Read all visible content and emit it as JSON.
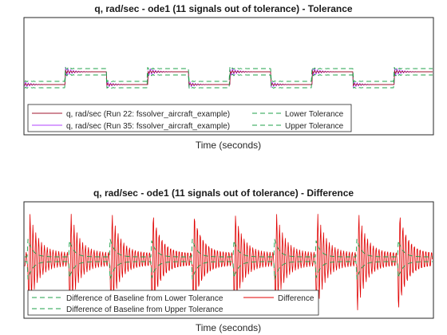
{
  "chart_data": [
    {
      "type": "line",
      "title": "q, rad/sec - ode1 (11 signals out of tolerance) - Tolerance",
      "xlabel": "Time (seconds)",
      "ylabel": "",
      "grid": false,
      "legend_location": "bottom-left",
      "series": [
        {
          "name": "q, rad/sec (Run 22: fssolver_aircraft_example)",
          "color": "#a2142f"
        },
        {
          "name": "q, rad/sec (Run 35: fssolver_aircraft_example)",
          "color": "#b040ff"
        },
        {
          "name": "Lower Tolerance",
          "color": "#1fa04a",
          "dash": "dashed"
        },
        {
          "name": "Upper Tolerance",
          "color": "#1fa04a",
          "dash": "dashed"
        }
      ],
      "legend_layout": [
        [
          0,
          2
        ],
        [
          1,
          3
        ]
      ]
    },
    {
      "type": "line",
      "title": "q, rad/sec - ode1 (11 signals out of tolerance) - Difference",
      "xlabel": "Time (seconds)",
      "ylabel": "",
      "grid": false,
      "legend_location": "bottom-left",
      "series": [
        {
          "name": "Difference of Baseline from Lower Tolerance",
          "color": "#1fa04a",
          "dash": "dashed"
        },
        {
          "name": "Difference of Baseline from Upper Tolerance",
          "color": "#1fa04a",
          "dash": "dashed"
        },
        {
          "name": "Difference",
          "color": "#e00000"
        }
      ],
      "legend_layout": [
        [
          0,
          2
        ],
        [
          1
        ]
      ]
    }
  ]
}
